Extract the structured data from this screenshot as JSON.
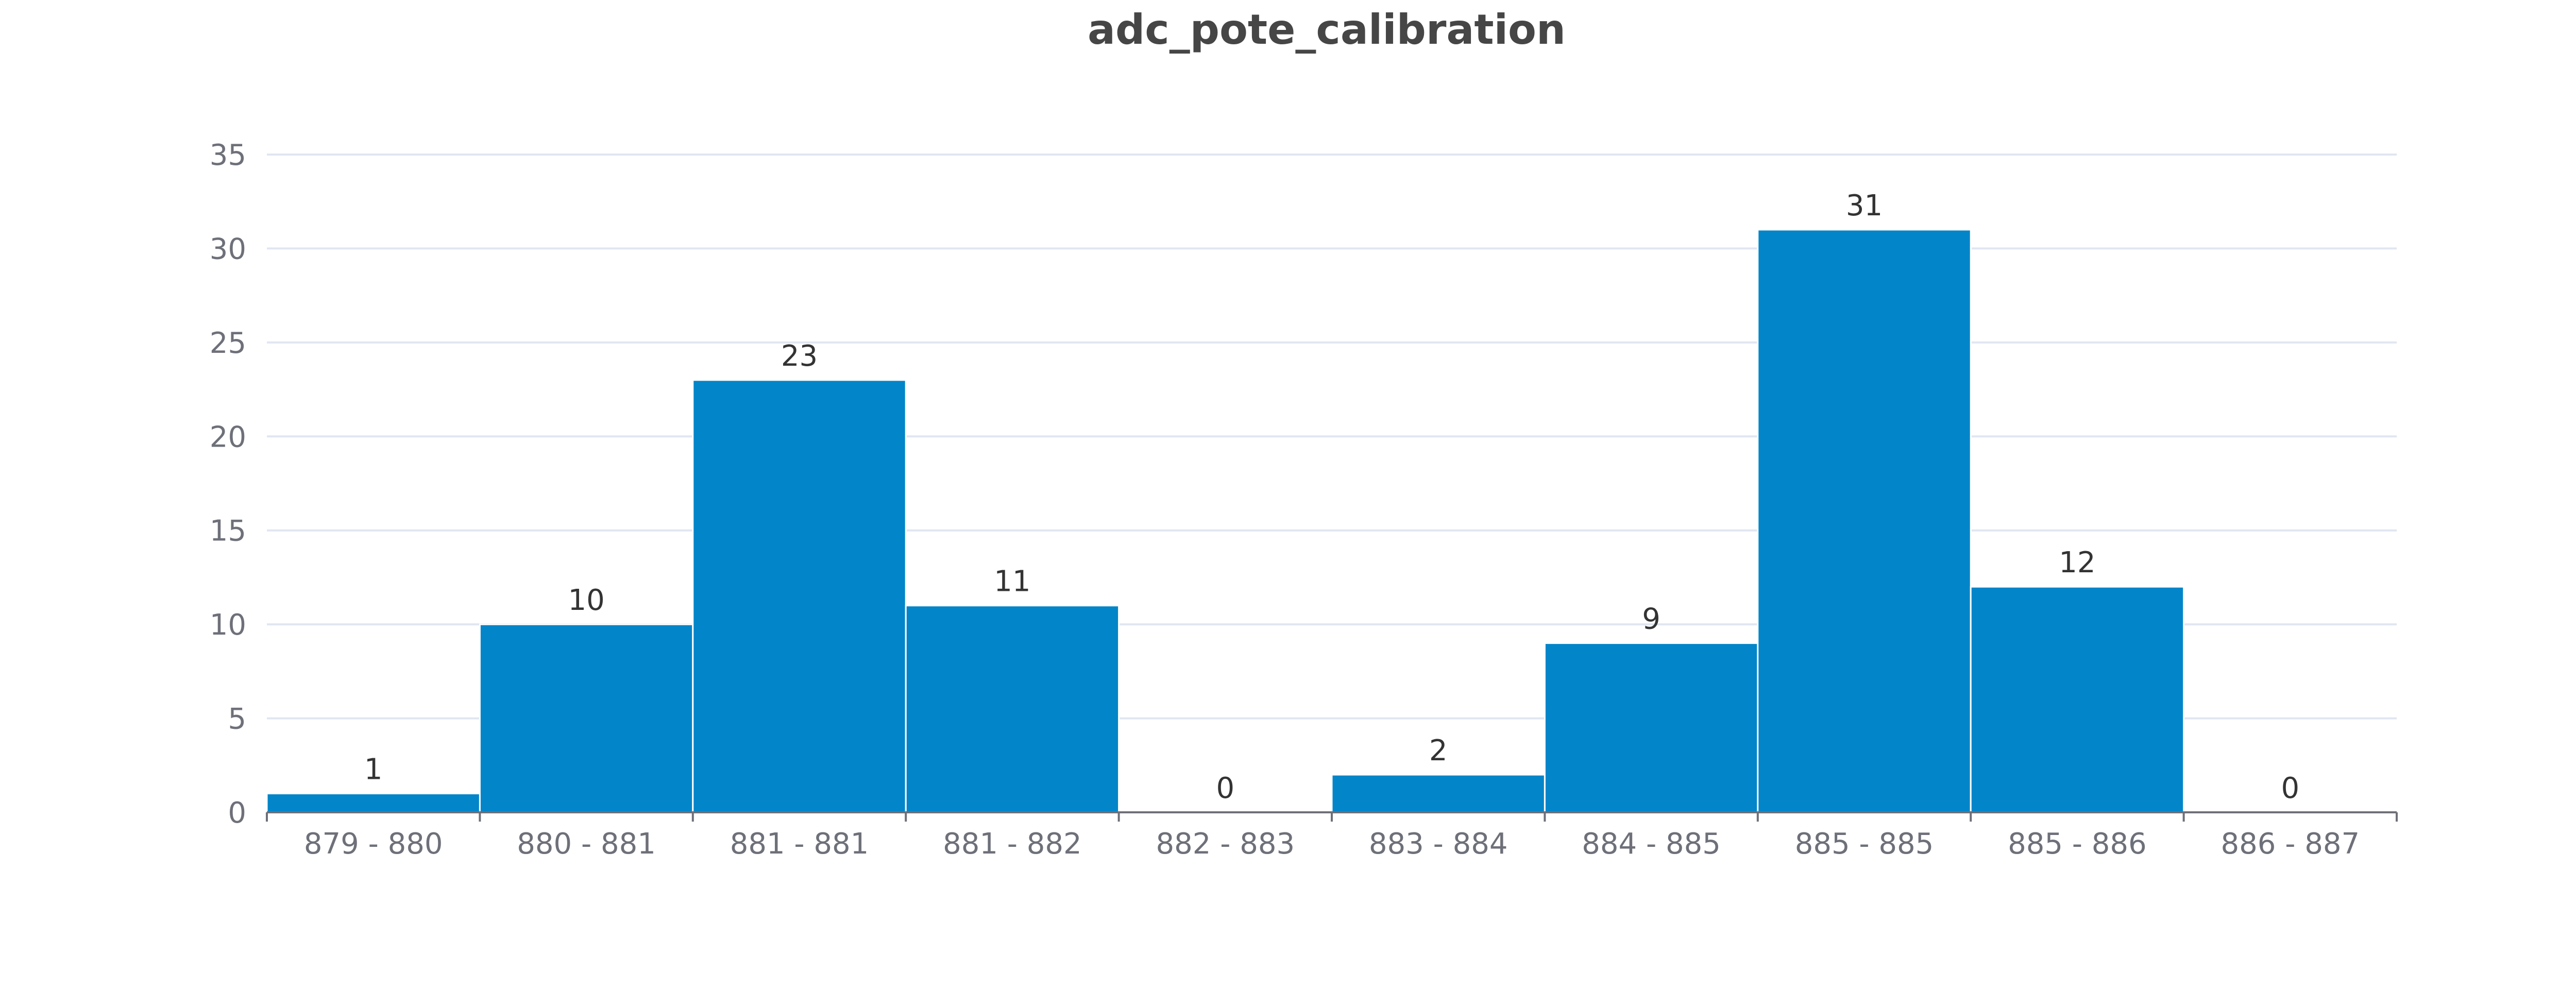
{
  "chart_data": {
    "type": "bar",
    "title": "adc_pote_calibration",
    "xlabel": "",
    "ylabel": "",
    "categories": [
      "879 - 880",
      "880 - 881",
      "881 - 881",
      "881 - 882",
      "882 - 883",
      "883 - 884",
      "884 - 885",
      "885 - 885",
      "885 - 886",
      "886 - 887"
    ],
    "values": [
      1,
      10,
      23,
      11,
      0,
      2,
      9,
      31,
      12,
      0
    ],
    "ylim": [
      0,
      35
    ],
    "yticks": [
      "0",
      "5",
      "10",
      "15",
      "20",
      "25",
      "30",
      "35"
    ],
    "data_labels": [
      "1",
      "10",
      "23",
      "11",
      "0",
      "2",
      "9",
      "31",
      "12",
      "0"
    ],
    "grid": true,
    "legend": "none",
    "colors": {
      "bar": "#0285c9",
      "grid": "#e0e6f1",
      "axis": "#6e7079",
      "title": "#464646",
      "label": "#333333"
    }
  }
}
